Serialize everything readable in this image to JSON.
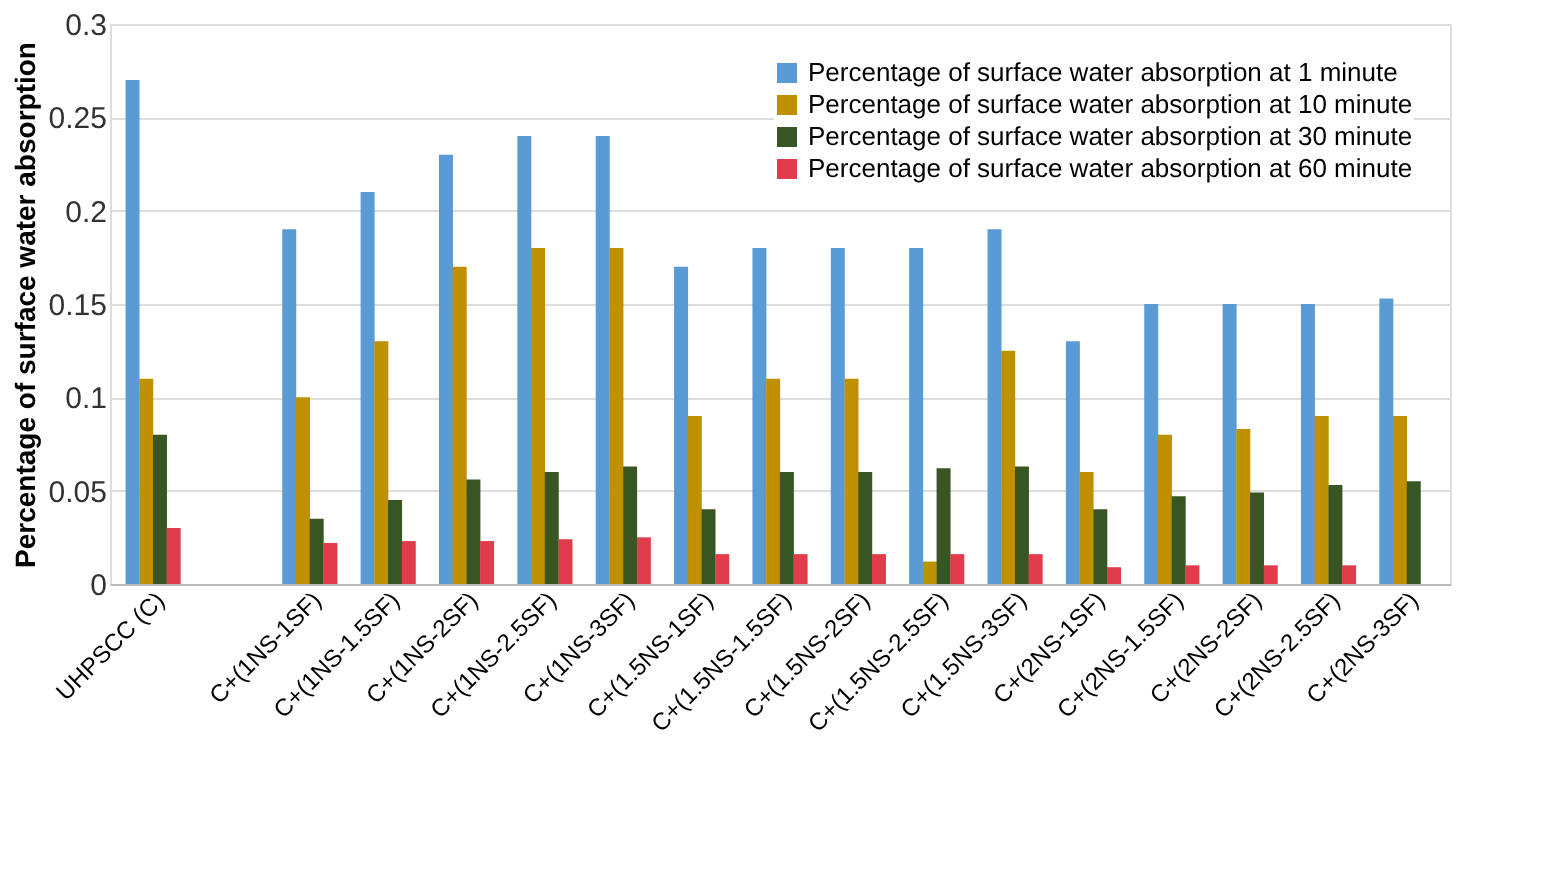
{
  "chart_data": {
    "type": "bar",
    "ylabel": "Percentage of surface water absorption",
    "categories": [
      "UHPSCC (C)",
      null,
      "C+(1NS-1SF)",
      "C+(1NS-1.5SF)",
      "C+(1NS-2SF)",
      "C+(1NS-2.5SF)",
      "C+(1NS-3SF)",
      "C+(1.5NS-1SF)",
      "C+(1.5NS-1.5SF)",
      "C+(1.5NS-2SF)",
      "C+(1.5NS-2.5SF)",
      "C+(1.5NS-3SF)",
      "C+(2NS-1SF)",
      "C+(2NS-1.5SF)",
      "C+(2NS-2SF)",
      "C+(2NS-2.5SF)",
      "C+(2NS-3SF)"
    ],
    "series": [
      {
        "name": "Percentage of surface water absorption at 1 minute",
        "color": "#5b9bd5",
        "values": [
          0.27,
          null,
          0.19,
          0.21,
          0.23,
          0.24,
          0.24,
          0.17,
          0.18,
          0.18,
          0.18,
          0.19,
          0.13,
          0.15,
          0.15,
          0.15,
          0.153
        ]
      },
      {
        "name": "Percentage of surface water absorption at 10 minute",
        "color": "#bf9000",
        "values": [
          0.11,
          null,
          0.1,
          0.13,
          0.17,
          0.18,
          0.18,
          0.09,
          0.11,
          0.11,
          0.012,
          0.125,
          0.06,
          0.08,
          0.083,
          0.09,
          0.09
        ]
      },
      {
        "name": "Percentage of surface water absorption at 30 minute",
        "color": "#375623",
        "values": [
          0.08,
          null,
          0.035,
          0.045,
          0.056,
          0.06,
          0.063,
          0.04,
          0.06,
          0.06,
          0.062,
          0.063,
          0.04,
          0.047,
          0.049,
          0.053,
          0.055
        ]
      },
      {
        "name": "Percentage of surface water absorption at 60 minute",
        "color": "#e03c4b",
        "values": [
          0.03,
          null,
          0.022,
          0.023,
          0.023,
          0.024,
          0.025,
          0.016,
          0.016,
          0.016,
          0.016,
          0.016,
          0.009,
          0.01,
          0.01,
          0.01,
          null
        ]
      }
    ],
    "ylim": [
      0,
      0.3
    ],
    "yticks": [
      0,
      0.05,
      0.1,
      0.15,
      0.2,
      0.25,
      0.3
    ],
    "grid": "y",
    "legend": "top right"
  }
}
